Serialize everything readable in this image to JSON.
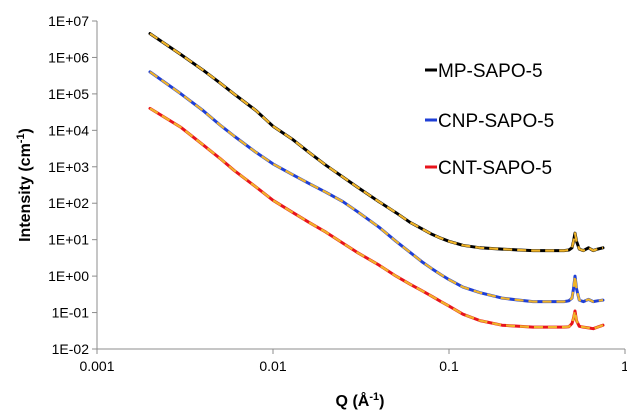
{
  "chart_data": {
    "type": "line",
    "title": "",
    "xlabel": {
      "base": "Q (Å",
      "sup": "-1",
      "close": ")"
    },
    "ylabel": {
      "base": "Intensity (cm",
      "sup": "-1",
      "close": ")"
    },
    "xscale": "log",
    "yscale": "log",
    "xlim": [
      0.001,
      1
    ],
    "ylim": [
      0.01,
      10000000
    ],
    "grid": false,
    "legend_position": "right",
    "x_tick_labels": [
      "0.001",
      "0.01",
      "0.1",
      "1"
    ],
    "y_tick_labels": [
      "1E-02",
      "1E-01",
      "1E+00",
      "1E+01",
      "1E+02",
      "1E+03",
      "1E+04",
      "1E+05",
      "1E+06",
      "1E+07"
    ],
    "fit_color": "#f0b429",
    "series": [
      {
        "name": "MP-SAPO-5",
        "color": "#000000",
        "x": [
          0.002,
          0.003,
          0.004,
          0.005,
          0.006,
          0.008,
          0.01,
          0.013,
          0.016,
          0.02,
          0.025,
          0.03,
          0.04,
          0.05,
          0.06,
          0.07,
          0.08,
          0.09,
          0.1,
          0.12,
          0.15,
          0.2,
          0.25,
          0.3,
          0.35,
          0.4,
          0.45,
          0.48,
          0.5,
          0.51,
          0.52,
          0.53,
          0.55,
          0.58,
          0.62,
          0.66,
          0.7,
          0.75
        ],
        "y": [
          4500000,
          1200000,
          450000,
          200000,
          100000,
          35000,
          13000,
          5500,
          2500,
          1100,
          520,
          280,
          110,
          55,
          30,
          20,
          14,
          11,
          9,
          7,
          6,
          5.5,
          5.2,
          5,
          5,
          5,
          5,
          5.2,
          6,
          9,
          15,
          9,
          5.5,
          5,
          6,
          5,
          5.5,
          6
        ]
      },
      {
        "name": "CNP-SAPO-5",
        "color": "#1f3fd6",
        "x": [
          0.002,
          0.003,
          0.004,
          0.005,
          0.006,
          0.008,
          0.01,
          0.013,
          0.016,
          0.02,
          0.025,
          0.03,
          0.04,
          0.05,
          0.06,
          0.07,
          0.08,
          0.09,
          0.1,
          0.12,
          0.15,
          0.2,
          0.25,
          0.3,
          0.35,
          0.4,
          0.45,
          0.48,
          0.5,
          0.51,
          0.52,
          0.53,
          0.55,
          0.58,
          0.62,
          0.66,
          0.7,
          0.75
        ],
        "y": [
          400000,
          100000,
          35000,
          14000,
          7000,
          2500,
          1200,
          600,
          350,
          200,
          110,
          60,
          22,
          9,
          4.5,
          2.5,
          1.6,
          1.1,
          0.8,
          0.5,
          0.35,
          0.25,
          0.22,
          0.2,
          0.2,
          0.2,
          0.2,
          0.21,
          0.25,
          0.45,
          1,
          0.45,
          0.22,
          0.2,
          0.23,
          0.2,
          0.21,
          0.22
        ]
      },
      {
        "name": "CNT-SAPO-5",
        "color": "#e8141c",
        "x": [
          0.002,
          0.003,
          0.004,
          0.005,
          0.006,
          0.008,
          0.01,
          0.013,
          0.016,
          0.02,
          0.025,
          0.03,
          0.04,
          0.05,
          0.06,
          0.07,
          0.08,
          0.09,
          0.1,
          0.12,
          0.15,
          0.2,
          0.25,
          0.3,
          0.35,
          0.4,
          0.45,
          0.48,
          0.5,
          0.51,
          0.52,
          0.53,
          0.55,
          0.58,
          0.62,
          0.66,
          0.7,
          0.75
        ],
        "y": [
          40000,
          12000,
          4000,
          1700,
          800,
          280,
          120,
          55,
          30,
          16,
          8,
          4.5,
          2,
          1,
          0.6,
          0.4,
          0.28,
          0.2,
          0.15,
          0.09,
          0.06,
          0.045,
          0.042,
          0.04,
          0.04,
          0.04,
          0.04,
          0.041,
          0.05,
          0.07,
          0.11,
          0.06,
          0.042,
          0.04,
          0.038,
          0.036,
          0.04,
          0.045
        ]
      }
    ]
  }
}
